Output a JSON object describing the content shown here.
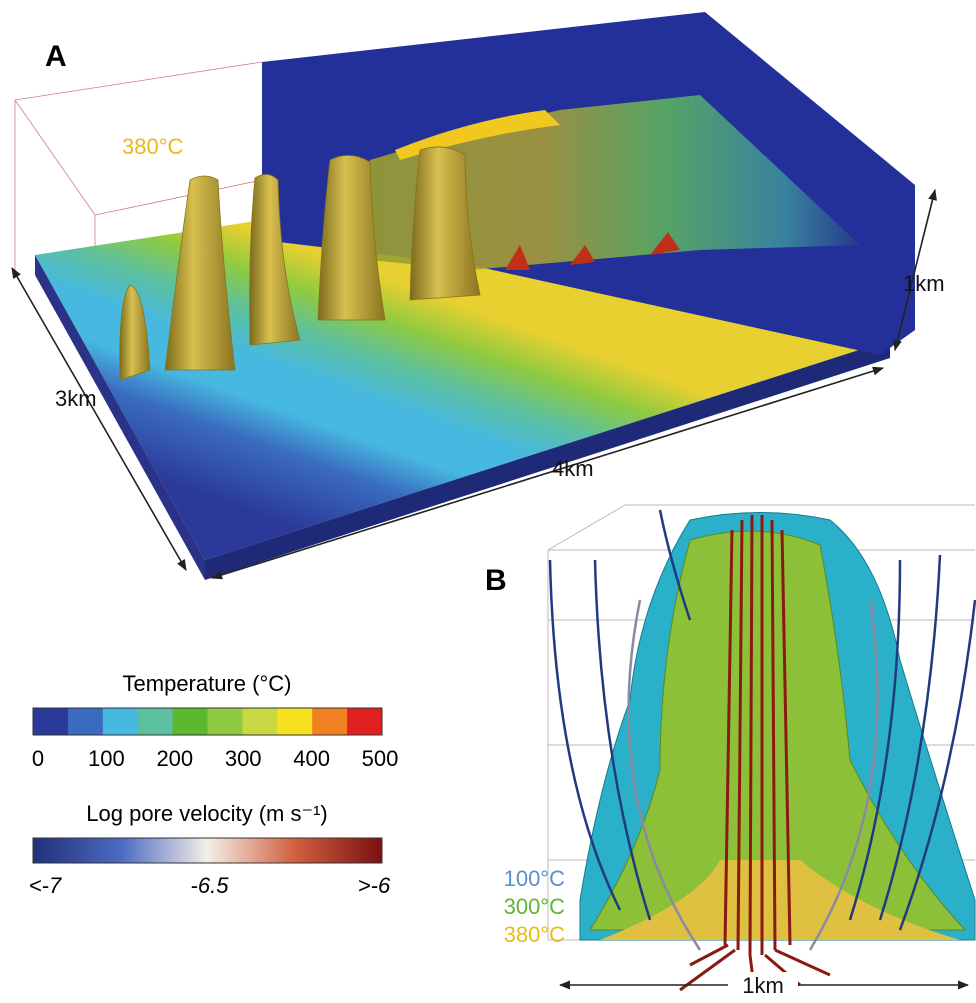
{
  "panel_a": {
    "label": "A",
    "isotherm_label": "380°C",
    "dimensions": {
      "depth": "1km",
      "width": "3km",
      "length": "4km"
    }
  },
  "panel_b": {
    "label": "B",
    "isotherms": [
      {
        "label": "100°C",
        "color": "#5b8fd0"
      },
      {
        "label": "300°C",
        "color": "#5cb82e"
      },
      {
        "label": "380°C",
        "color": "#e8bc1c"
      }
    ],
    "scale": "1km"
  },
  "legends": {
    "temperature": {
      "title": "Temperature (°C)",
      "colors": [
        "#2b3a9a",
        "#3a6bbf",
        "#47b8e0",
        "#5cc0a0",
        "#5cb82e",
        "#8fca40",
        "#c8d840",
        "#f7e020",
        "#f08020",
        "#e02020"
      ],
      "ticks": [
        "0",
        "100",
        "200",
        "300",
        "400",
        "500"
      ]
    },
    "velocity": {
      "title": "Log pore velocity (m s⁻¹)",
      "ticks": [
        "<-7",
        "-6.5",
        ">-6"
      ]
    }
  }
}
